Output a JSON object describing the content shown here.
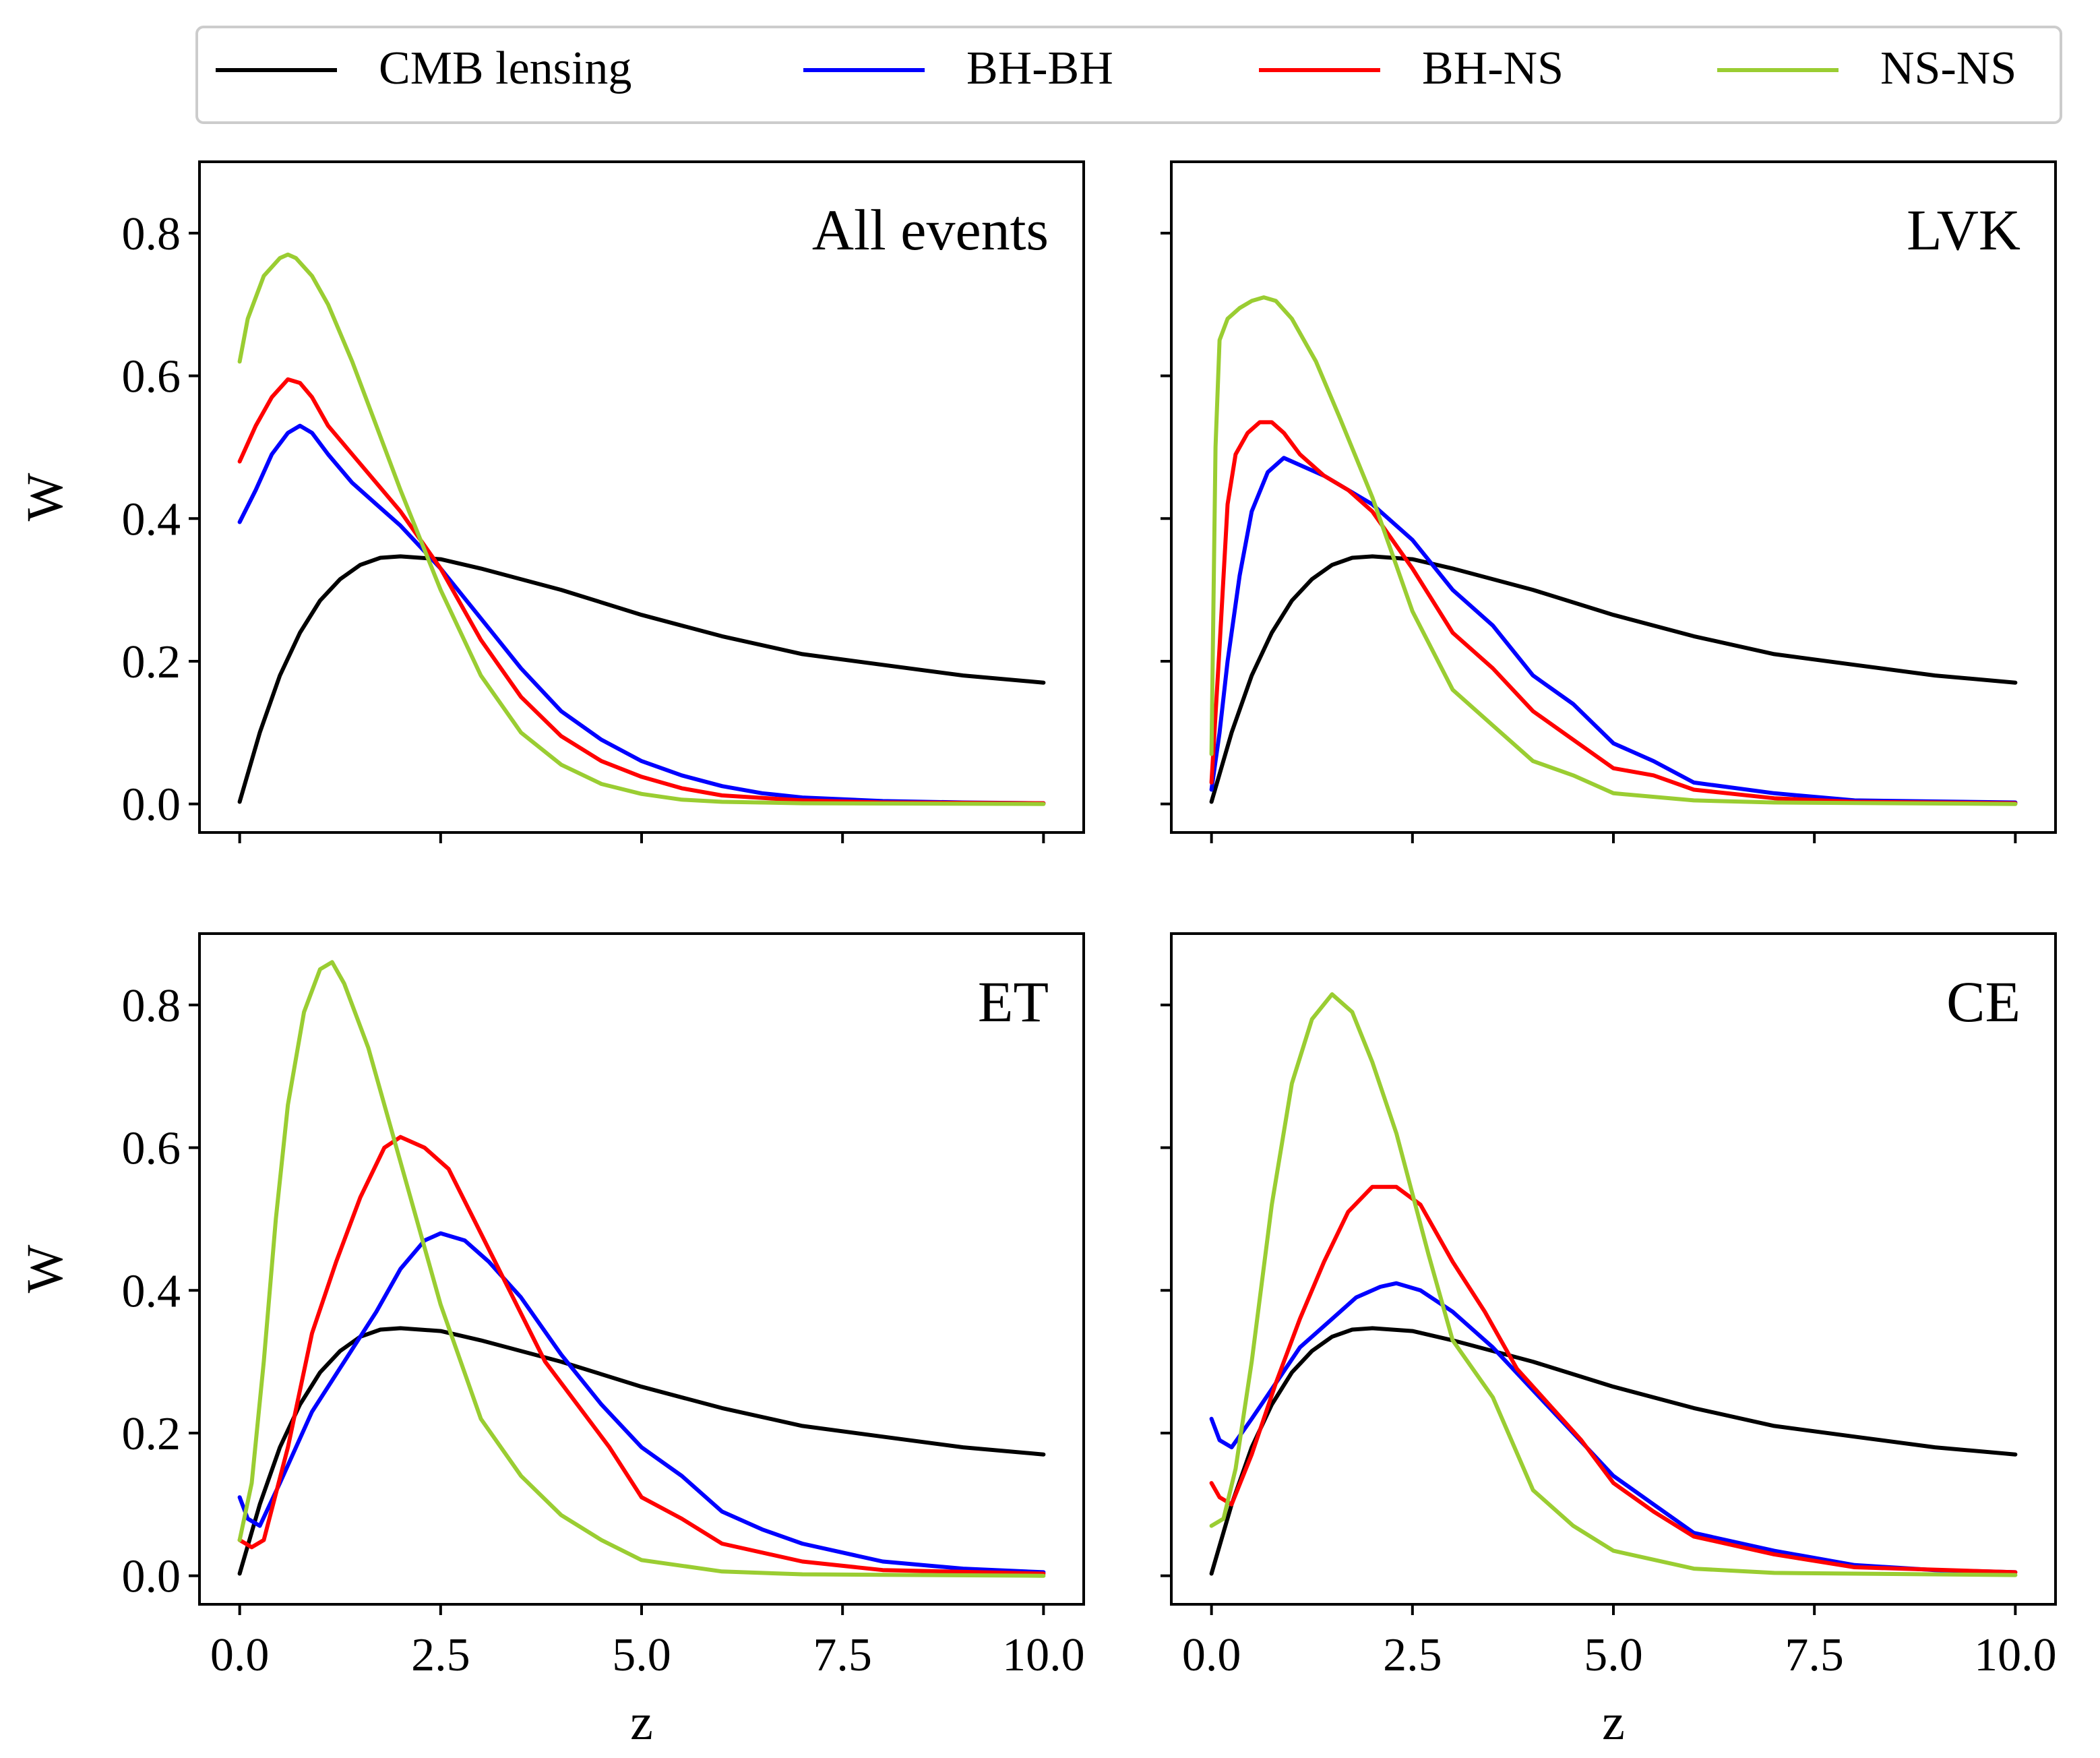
{
  "figure": {
    "legend": [
      {
        "name": "CMB lensing",
        "color": "#000000"
      },
      {
        "name": "BH-BH",
        "color": "#0000ff"
      },
      {
        "name": "BH-NS",
        "color": "#ff0000"
      },
      {
        "name": "NS-NS",
        "color": "#9acd32"
      }
    ]
  },
  "chart_data": [
    {
      "type": "line",
      "title": "All events",
      "xlabel": "",
      "ylabel": "W",
      "xlim": [
        -0.5,
        10.5
      ],
      "ylim": [
        -0.04,
        0.9
      ],
      "xticks": [
        0.0,
        2.5,
        5.0,
        7.5,
        10.0
      ],
      "xtick_labels": [],
      "yticks": [
        0.0,
        0.2,
        0.4,
        0.6,
        0.8
      ],
      "ytick_labels": [
        "0.0",
        "0.2",
        "0.4",
        "0.6",
        "0.8"
      ],
      "series": [
        {
          "name": "CMB lensing",
          "x": [
            0,
            0.25,
            0.5,
            0.75,
            1,
            1.25,
            1.5,
            1.75,
            2,
            2.5,
            3,
            4,
            5,
            6,
            7,
            8,
            9,
            10
          ],
          "y": [
            0.003,
            0.1,
            0.18,
            0.24,
            0.285,
            0.315,
            0.335,
            0.345,
            0.347,
            0.343,
            0.33,
            0.3,
            0.265,
            0.235,
            0.21,
            0.195,
            0.18,
            0.17
          ]
        },
        {
          "name": "BH-BH",
          "x": [
            0,
            0.2,
            0.4,
            0.6,
            0.75,
            0.9,
            1.1,
            1.4,
            1.7,
            2,
            2.5,
            3,
            3.5,
            4,
            4.5,
            5,
            5.5,
            6,
            6.5,
            7,
            8,
            9,
            10
          ],
          "y": [
            0.395,
            0.44,
            0.49,
            0.52,
            0.53,
            0.52,
            0.49,
            0.45,
            0.42,
            0.39,
            0.33,
            0.26,
            0.19,
            0.13,
            0.09,
            0.06,
            0.04,
            0.025,
            0.015,
            0.009,
            0.004,
            0.002,
            0.001
          ]
        },
        {
          "name": "BH-NS",
          "x": [
            0,
            0.2,
            0.4,
            0.6,
            0.75,
            0.9,
            1.1,
            1.4,
            1.7,
            2,
            2.5,
            3,
            3.5,
            4,
            4.5,
            5,
            5.5,
            6,
            7,
            8,
            10
          ],
          "y": [
            0.48,
            0.53,
            0.57,
            0.595,
            0.59,
            0.57,
            0.53,
            0.49,
            0.45,
            0.41,
            0.33,
            0.23,
            0.15,
            0.095,
            0.06,
            0.038,
            0.022,
            0.012,
            0.005,
            0.002,
            0.001
          ]
        },
        {
          "name": "NS-NS",
          "x": [
            0,
            0.1,
            0.3,
            0.5,
            0.6,
            0.7,
            0.9,
            1.1,
            1.4,
            1.7,
            2,
            2.5,
            3,
            3.5,
            4,
            4.5,
            5,
            5.5,
            6,
            7,
            10
          ],
          "y": [
            0.62,
            0.68,
            0.74,
            0.765,
            0.77,
            0.765,
            0.74,
            0.7,
            0.62,
            0.53,
            0.44,
            0.3,
            0.18,
            0.1,
            0.055,
            0.028,
            0.014,
            0.006,
            0.003,
            0.001,
            0.0
          ]
        }
      ]
    },
    {
      "type": "line",
      "title": "LVK",
      "xlabel": "",
      "ylabel": "",
      "xlim": [
        -0.5,
        10.5
      ],
      "ylim": [
        -0.04,
        0.9
      ],
      "xticks": [
        0.0,
        2.5,
        5.0,
        7.5,
        10.0
      ],
      "xtick_labels": [],
      "yticks": [
        0.0,
        0.2,
        0.4,
        0.6,
        0.8
      ],
      "ytick_labels": [],
      "series": [
        {
          "name": "CMB lensing",
          "x": [
            0,
            0.25,
            0.5,
            0.75,
            1,
            1.25,
            1.5,
            1.75,
            2,
            2.5,
            3,
            4,
            5,
            6,
            7,
            8,
            9,
            10
          ],
          "y": [
            0.003,
            0.1,
            0.18,
            0.24,
            0.285,
            0.315,
            0.335,
            0.345,
            0.347,
            0.343,
            0.33,
            0.3,
            0.265,
            0.235,
            0.21,
            0.195,
            0.18,
            0.17
          ]
        },
        {
          "name": "BH-BH",
          "x": [
            0,
            0.1,
            0.2,
            0.35,
            0.5,
            0.7,
            0.9,
            1.1,
            1.4,
            1.7,
            2,
            2.5,
            3,
            3.5,
            4,
            4.5,
            5,
            5.5,
            6,
            7,
            8,
            10
          ],
          "y": [
            0.02,
            0.1,
            0.2,
            0.32,
            0.41,
            0.465,
            0.485,
            0.475,
            0.46,
            0.44,
            0.42,
            0.37,
            0.3,
            0.25,
            0.18,
            0.14,
            0.085,
            0.06,
            0.03,
            0.015,
            0.005,
            0.002
          ]
        },
        {
          "name": "BH-NS",
          "x": [
            0,
            0.1,
            0.2,
            0.3,
            0.45,
            0.6,
            0.75,
            0.9,
            1.1,
            1.4,
            1.7,
            2,
            2.5,
            3,
            3.5,
            4,
            4.5,
            5,
            5.5,
            6,
            7,
            8,
            10
          ],
          "y": [
            0.03,
            0.22,
            0.42,
            0.49,
            0.52,
            0.535,
            0.535,
            0.52,
            0.49,
            0.46,
            0.44,
            0.41,
            0.33,
            0.24,
            0.19,
            0.13,
            0.09,
            0.05,
            0.04,
            0.02,
            0.008,
            0.003,
            0.001
          ]
        },
        {
          "name": "NS-NS",
          "x": [
            0,
            0.05,
            0.1,
            0.2,
            0.35,
            0.5,
            0.65,
            0.8,
            1,
            1.3,
            1.6,
            2,
            2.5,
            3,
            3.5,
            4,
            4.5,
            5,
            6,
            7,
            10
          ],
          "y": [
            0.07,
            0.5,
            0.65,
            0.68,
            0.695,
            0.705,
            0.71,
            0.705,
            0.68,
            0.62,
            0.54,
            0.43,
            0.27,
            0.16,
            0.11,
            0.06,
            0.04,
            0.015,
            0.005,
            0.002,
            0.0
          ]
        }
      ]
    },
    {
      "type": "line",
      "title": "ET",
      "xlabel": "z",
      "ylabel": "W",
      "xlim": [
        -0.5,
        10.5
      ],
      "ylim": [
        -0.04,
        0.9
      ],
      "xticks": [
        0.0,
        2.5,
        5.0,
        7.5,
        10.0
      ],
      "xtick_labels": [
        "0.0",
        "2.5",
        "5.0",
        "7.5",
        "10.0"
      ],
      "yticks": [
        0.0,
        0.2,
        0.4,
        0.6,
        0.8
      ],
      "ytick_labels": [
        "0.0",
        "0.2",
        "0.4",
        "0.6",
        "0.8"
      ],
      "series": [
        {
          "name": "CMB lensing",
          "x": [
            0,
            0.25,
            0.5,
            0.75,
            1,
            1.25,
            1.5,
            1.75,
            2,
            2.5,
            3,
            4,
            5,
            6,
            7,
            8,
            9,
            10
          ],
          "y": [
            0.003,
            0.1,
            0.18,
            0.24,
            0.285,
            0.315,
            0.335,
            0.345,
            0.347,
            0.343,
            0.33,
            0.3,
            0.265,
            0.235,
            0.21,
            0.195,
            0.18,
            0.17
          ]
        },
        {
          "name": "BH-BH",
          "x": [
            0,
            0.1,
            0.25,
            0.5,
            0.9,
            1.3,
            1.7,
            2,
            2.3,
            2.5,
            2.8,
            3.1,
            3.5,
            4,
            4.5,
            5,
            5.5,
            6,
            6.5,
            7,
            8,
            9,
            10
          ],
          "y": [
            0.11,
            0.08,
            0.07,
            0.13,
            0.23,
            0.3,
            0.37,
            0.43,
            0.47,
            0.48,
            0.47,
            0.44,
            0.39,
            0.31,
            0.24,
            0.18,
            0.14,
            0.09,
            0.065,
            0.045,
            0.02,
            0.01,
            0.005
          ]
        },
        {
          "name": "BH-NS",
          "x": [
            0,
            0.15,
            0.3,
            0.6,
            0.9,
            1.2,
            1.5,
            1.8,
            2,
            2.3,
            2.6,
            3,
            3.4,
            3.8,
            4.2,
            4.6,
            5,
            5.5,
            6,
            7,
            8,
            10
          ],
          "y": [
            0.05,
            0.04,
            0.05,
            0.18,
            0.34,
            0.44,
            0.53,
            0.6,
            0.615,
            0.6,
            0.57,
            0.48,
            0.39,
            0.3,
            0.24,
            0.18,
            0.11,
            0.08,
            0.045,
            0.02,
            0.008,
            0.003
          ]
        },
        {
          "name": "NS-NS",
          "x": [
            0,
            0.15,
            0.3,
            0.45,
            0.6,
            0.8,
            1,
            1.15,
            1.3,
            1.6,
            2,
            2.5,
            3,
            3.5,
            4,
            4.5,
            5,
            6,
            7,
            10
          ],
          "y": [
            0.05,
            0.13,
            0.3,
            0.5,
            0.66,
            0.79,
            0.85,
            0.86,
            0.83,
            0.74,
            0.58,
            0.38,
            0.22,
            0.14,
            0.085,
            0.05,
            0.022,
            0.006,
            0.002,
            0.0
          ]
        }
      ]
    },
    {
      "type": "line",
      "title": "CE",
      "xlabel": "z",
      "ylabel": "",
      "xlim": [
        -0.5,
        10.5
      ],
      "ylim": [
        -0.04,
        0.9
      ],
      "xticks": [
        0.0,
        2.5,
        5.0,
        7.5,
        10.0
      ],
      "xtick_labels": [
        "0.0",
        "2.5",
        "5.0",
        "7.5",
        "10.0"
      ],
      "yticks": [
        0.0,
        0.2,
        0.4,
        0.6,
        0.8
      ],
      "ytick_labels": [],
      "series": [
        {
          "name": "CMB lensing",
          "x": [
            0,
            0.25,
            0.5,
            0.75,
            1,
            1.25,
            1.5,
            1.75,
            2,
            2.5,
            3,
            4,
            5,
            6,
            7,
            8,
            9,
            10
          ],
          "y": [
            0.003,
            0.1,
            0.18,
            0.24,
            0.285,
            0.315,
            0.335,
            0.345,
            0.347,
            0.343,
            0.33,
            0.3,
            0.265,
            0.235,
            0.21,
            0.195,
            0.18,
            0.17
          ]
        },
        {
          "name": "BH-BH",
          "x": [
            0,
            0.1,
            0.25,
            0.5,
            0.8,
            1.1,
            1.5,
            1.8,
            2.1,
            2.3,
            2.6,
            3,
            3.5,
            4,
            4.5,
            5,
            5.5,
            6,
            7,
            8,
            9,
            10
          ],
          "y": [
            0.22,
            0.19,
            0.18,
            0.22,
            0.27,
            0.32,
            0.36,
            0.39,
            0.405,
            0.41,
            0.4,
            0.37,
            0.32,
            0.26,
            0.2,
            0.14,
            0.1,
            0.06,
            0.035,
            0.015,
            0.008,
            0.005
          ]
        },
        {
          "name": "BH-NS",
          "x": [
            0,
            0.1,
            0.25,
            0.5,
            0.8,
            1.1,
            1.4,
            1.7,
            2,
            2.3,
            2.6,
            3,
            3.4,
            3.8,
            4.2,
            4.6,
            5,
            5.5,
            6,
            7,
            8,
            10
          ],
          "y": [
            0.13,
            0.11,
            0.1,
            0.17,
            0.27,
            0.36,
            0.44,
            0.51,
            0.545,
            0.545,
            0.52,
            0.44,
            0.37,
            0.29,
            0.24,
            0.19,
            0.13,
            0.09,
            0.055,
            0.03,
            0.012,
            0.005
          ]
        },
        {
          "name": "NS-NS",
          "x": [
            0,
            0.15,
            0.3,
            0.5,
            0.75,
            1,
            1.25,
            1.5,
            1.75,
            2,
            2.3,
            2.7,
            3,
            3.5,
            4,
            4.5,
            5,
            6,
            7,
            10
          ],
          "y": [
            0.07,
            0.08,
            0.15,
            0.3,
            0.52,
            0.69,
            0.78,
            0.815,
            0.79,
            0.72,
            0.62,
            0.45,
            0.33,
            0.25,
            0.12,
            0.07,
            0.035,
            0.01,
            0.004,
            0.001
          ]
        }
      ]
    }
  ]
}
